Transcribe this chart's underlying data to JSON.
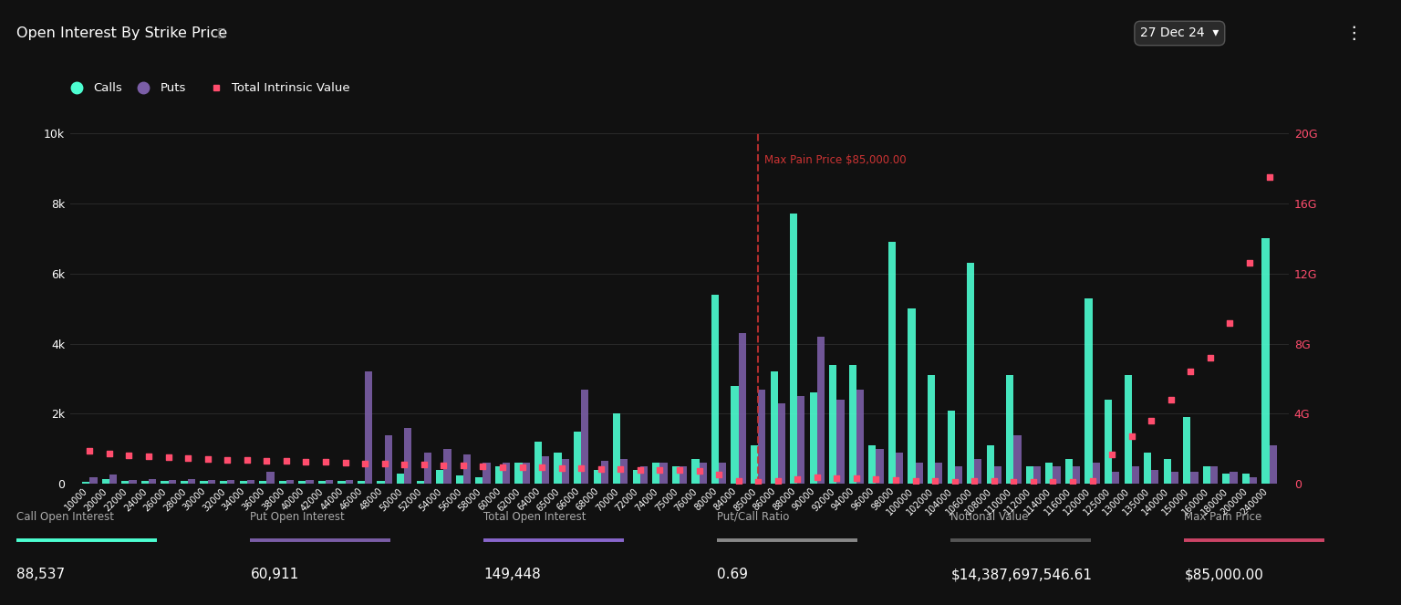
{
  "title": "Open Interest By Strike Price",
  "date_label": "27 Dec 24",
  "bg_color": "#111111",
  "calls_color": "#4dffd2",
  "puts_color": "#7b5ea7",
  "tiv_color": "#ff4d6d",
  "max_pain_color": "#cc3333",
  "max_pain_price": 85000,
  "strikes": [
    10000,
    20000,
    22000,
    24000,
    26000,
    28000,
    30000,
    32000,
    34000,
    36000,
    38000,
    40000,
    42000,
    44000,
    46000,
    48000,
    50000,
    52000,
    54000,
    56000,
    58000,
    60000,
    62000,
    64000,
    65000,
    66000,
    68000,
    70000,
    72000,
    74000,
    75000,
    76000,
    80000,
    84000,
    85000,
    86000,
    88000,
    90000,
    92000,
    94000,
    96000,
    98000,
    100000,
    102000,
    104000,
    106000,
    108000,
    110000,
    112000,
    114000,
    116000,
    120000,
    125000,
    130000,
    135000,
    140000,
    150000,
    160000,
    180000,
    200000,
    240000
  ],
  "calls": [
    50,
    150,
    80,
    80,
    100,
    80,
    80,
    80,
    80,
    80,
    80,
    80,
    80,
    80,
    80,
    80,
    300,
    80,
    400,
    250,
    200,
    500,
    600,
    1200,
    900,
    1500,
    400,
    2000,
    400,
    600,
    500,
    700,
    5400,
    2800,
    1100,
    3200,
    7700,
    2600,
    3400,
    3400,
    1100,
    6900,
    5000,
    3100,
    2100,
    6300,
    1100,
    3100,
    500,
    600,
    700,
    5300,
    2400,
    3100,
    900,
    700,
    1900,
    500,
    300,
    300,
    7000
  ],
  "puts": [
    200,
    280,
    120,
    150,
    120,
    150,
    120,
    120,
    120,
    350,
    120,
    120,
    120,
    120,
    3200,
    1400,
    1600,
    900,
    1000,
    850,
    600,
    600,
    600,
    800,
    700,
    2700,
    650,
    700,
    500,
    600,
    500,
    600,
    600,
    4300,
    2700,
    2300,
    2500,
    4200,
    2400,
    2700,
    1000,
    900,
    600,
    600,
    500,
    700,
    500,
    1400,
    500,
    500,
    500,
    600,
    350,
    500,
    400,
    350,
    350,
    500,
    350,
    180,
    1100
  ],
  "tiv": [
    1900,
    1750,
    1650,
    1600,
    1540,
    1480,
    1420,
    1390,
    1360,
    1330,
    1310,
    1280,
    1250,
    1220,
    1190,
    1160,
    1130,
    1100,
    1070,
    1040,
    1010,
    980,
    960,
    940,
    920,
    900,
    870,
    840,
    810,
    790,
    780,
    770,
    550,
    190,
    140,
    190,
    280,
    380,
    330,
    350,
    300,
    230,
    190,
    170,
    150,
    180,
    160,
    140,
    130,
    120,
    110,
    180,
    1700,
    2700,
    3600,
    4800,
    6400,
    7200,
    9200,
    12600,
    17500
  ],
  "footer_items": [
    {
      "label": "Call Open Interest",
      "value": "88,537",
      "color": "#4dffd2"
    },
    {
      "label": "Put Open Interest",
      "value": "60,911",
      "color": "#7b5ea7"
    },
    {
      "label": "Total Open Interest",
      "value": "149,448",
      "color": "#8866cc"
    },
    {
      "label": "Put/Call Ratio",
      "value": "0.69",
      "color": "#888888"
    },
    {
      "label": "Notional Value",
      "value": "$14,387,697,546.61",
      "color": "#555555"
    },
    {
      "label": "Max Pain Price",
      "value": "$85,000.00",
      "color": "#cc4466"
    }
  ],
  "ylim_left": [
    0,
    10000
  ],
  "ylim_right": [
    0,
    20000000000
  ],
  "yticks_left": [
    0,
    2000,
    4000,
    6000,
    8000,
    10000
  ],
  "ytick_labels_left": [
    "0",
    "2k",
    "4k",
    "6k",
    "8k",
    "10k"
  ],
  "yticks_right": [
    0,
    4000000000,
    8000000000,
    12000000000,
    16000000000,
    20000000000
  ],
  "ytick_labels_right": [
    "0",
    "4G",
    "8G",
    "12G",
    "16G",
    "20G"
  ]
}
